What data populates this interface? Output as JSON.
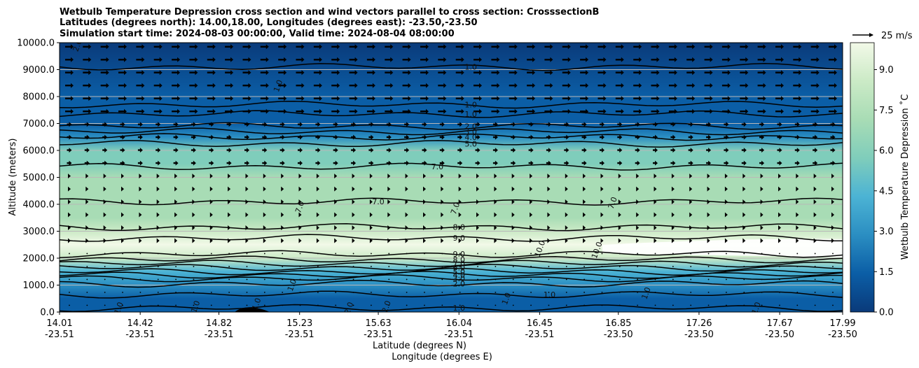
{
  "chart_data": {
    "type": "contour",
    "title_lines": [
      "Wetbulb Temperature Depression cross section and wind vectors parallel to cross section: CrosssectionB",
      "Latitudes (degrees north): 14.00,18.00, Longitudes (degrees east): -23.50,-23.50",
      "Simulation start time: 2024-08-03 00:00:00, Valid time: 2024-08-04 08:00:00"
    ],
    "ylabel": "Altitude (meters)",
    "xlabel_lines": [
      "Latitude (degrees N)",
      "Longitude (degrees E)"
    ],
    "ylim": [
      0,
      10000
    ],
    "y_ticks": [
      "0.0",
      "1000.0",
      "2000.0",
      "3000.0",
      "4000.0",
      "5000.0",
      "6000.0",
      "7000.0",
      "8000.0",
      "9000.0",
      "10000.0"
    ],
    "x_ticks": [
      {
        "lat": "14.01",
        "lon": "-23.51"
      },
      {
        "lat": "14.42",
        "lon": "-23.51"
      },
      {
        "lat": "14.82",
        "lon": "-23.51"
      },
      {
        "lat": "15.23",
        "lon": "-23.51"
      },
      {
        "lat": "15.63",
        "lon": "-23.51"
      },
      {
        "lat": "16.04",
        "lon": "-23.51"
      },
      {
        "lat": "16.45",
        "lon": "-23.51"
      },
      {
        "lat": "16.85",
        "lon": "-23.50"
      },
      {
        "lat": "17.26",
        "lon": "-23.50"
      },
      {
        "lat": "17.67",
        "lon": "-23.50"
      },
      {
        "lat": "17.99",
        "lon": "-23.50"
      }
    ],
    "xlim": [
      14.01,
      17.99
    ],
    "colorbar": {
      "label": "Wetbulb Temperature Depression ˚C",
      "ticks": [
        "0.0",
        "1.5",
        "3.0",
        "4.5",
        "6.0",
        "7.5",
        "9.0"
      ],
      "range": [
        0,
        10
      ],
      "cmap": [
        "#0a3a7a",
        "#0b5ea6",
        "#2b8ec2",
        "#4cb3d4",
        "#7fcdbb",
        "#a8dcb5",
        "#cbeac6",
        "#f2f9e8"
      ]
    },
    "quiver_key": "25 m/s",
    "profile": [
      {
        "alt": 0,
        "value": 1.0
      },
      {
        "alt": 500,
        "value": 1.5
      },
      {
        "alt": 1000,
        "value": 2.5
      },
      {
        "alt": 1500,
        "value": 4.5
      },
      {
        "alt": 2000,
        "value": 8.5
      },
      {
        "alt": 2500,
        "value": 9.6
      },
      {
        "alt": 3000,
        "value": 8.6
      },
      {
        "alt": 3500,
        "value": 7.8
      },
      {
        "alt": 4500,
        "value": 7.4
      },
      {
        "alt": 5000,
        "value": 7.0
      },
      {
        "alt": 5500,
        "value": 6.2
      },
      {
        "alt": 6000,
        "value": 5.0
      },
      {
        "alt": 6500,
        "value": 3.0
      },
      {
        "alt": 7000,
        "value": 1.8
      },
      {
        "alt": 8000,
        "value": 1.0
      },
      {
        "alt": 10000,
        "value": 0.6
      }
    ],
    "contours": [
      {
        "value": "1.0",
        "alt": 9100,
        "label_lat": 16.1
      },
      {
        "value": "1.0",
        "alt": 7700,
        "label_lat": 16.1
      },
      {
        "value": "1.0",
        "alt": 7350,
        "label_lat": 16.1
      },
      {
        "value": "2.0",
        "alt": 6900,
        "label_lat": 16.1
      },
      {
        "value": "3.0",
        "alt": 6700,
        "label_lat": 16.1
      },
      {
        "value": "4.0",
        "alt": 6500,
        "label_lat": 16.1
      },
      {
        "value": "5.0",
        "alt": 6250,
        "label_lat": 16.1
      },
      {
        "value": "7.0",
        "alt": 5400,
        "label_lat": 15.93
      },
      {
        "value": "7.0",
        "alt": 4100,
        "label_lat": 15.63
      },
      {
        "value": "8.0",
        "alt": 3150,
        "label_lat": 16.04
      },
      {
        "value": "9.0",
        "alt": 2750,
        "label_lat": 16.04
      },
      {
        "value": "9.0",
        "alt": 2150,
        "label_lat": 16.04
      },
      {
        "value": "8.0",
        "alt": 1950,
        "label_lat": 16.04
      },
      {
        "value": "7.0",
        "alt": 1800,
        "label_lat": 16.04
      },
      {
        "value": "6.0",
        "alt": 1650,
        "label_lat": 16.04
      },
      {
        "value": "5.0",
        "alt": 1500,
        "label_lat": 16.04
      },
      {
        "value": "4.0",
        "alt": 1380,
        "label_lat": 16.04
      },
      {
        "value": "3.0",
        "alt": 1250,
        "label_lat": 16.04
      },
      {
        "value": "2.0",
        "alt": 1050,
        "label_lat": 16.04
      },
      {
        "value": "1.0",
        "alt": 650,
        "label_lat": 16.5
      },
      {
        "value": "1.0",
        "alt": 150,
        "label_lat": 16.04
      }
    ],
    "extra_labels": [
      {
        "text": "1.0",
        "lat": 15.12,
        "alt": 8400
      },
      {
        "text": "7.0",
        "lat": 15.23,
        "alt": 3900
      },
      {
        "text": "7.0",
        "lat": 16.02,
        "alt": 3850
      },
      {
        "text": "7.0",
        "lat": 16.82,
        "alt": 4050
      },
      {
        "text": "10.0",
        "lat": 16.45,
        "alt": 2350
      },
      {
        "text": "10.0",
        "lat": 16.74,
        "alt": 2300
      },
      {
        "text": "1.0",
        "lat": 14.31,
        "alt": 150
      },
      {
        "text": "1.0",
        "lat": 14.7,
        "alt": 200
      },
      {
        "text": "1.0",
        "lat": 15.01,
        "alt": 300
      },
      {
        "text": "1.0",
        "lat": 15.19,
        "alt": 1000
      },
      {
        "text": "2.0",
        "lat": 15.48,
        "alt": 150
      },
      {
        "text": "2.0",
        "lat": 15.67,
        "alt": 200
      },
      {
        "text": "1.0",
        "lat": 16.28,
        "alt": 500
      },
      {
        "text": "1.0",
        "lat": 16.99,
        "alt": 700
      },
      {
        "text": "1.0",
        "lat": 17.55,
        "alt": 150
      },
      {
        "text": "2.0",
        "lat": 14.1,
        "alt": 9900
      }
    ]
  }
}
